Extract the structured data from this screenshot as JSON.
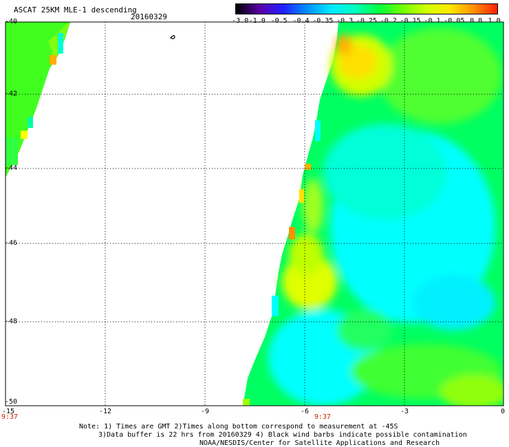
{
  "header": {
    "title": "ASCAT 25KM MLE-1 descending",
    "date": "20160329"
  },
  "colorbar": {
    "labels": [
      "-3.0",
      "-1.0",
      "-0.5",
      "-0.4",
      "-0.35",
      "-0.3",
      "-0.25",
      "-0.2",
      "-0.15",
      "-0.1",
      "-0.05",
      "0.0",
      "1.0"
    ],
    "colors": [
      "#000000",
      "#5b00a8",
      "#2020ff",
      "#0090ff",
      "#00e8ff",
      "#00ffc0",
      "#00ff40",
      "#70ff00",
      "#d0ff00",
      "#ffe800",
      "#ff9000",
      "#ff2000"
    ]
  },
  "map": {
    "lon_range": [
      -15,
      0
    ],
    "lat_range": [
      -50,
      -40
    ],
    "x_ticks": [
      "-15",
      "-12",
      "-9",
      "-6",
      "-3",
      "0"
    ],
    "y_ticks": [
      "-40",
      "-42",
      "-44",
      "-46",
      "-48",
      "-50"
    ],
    "time_labels": [
      "9:37",
      "9:37"
    ],
    "colors": {
      "cyan": "#00ffff",
      "aqua_green": "#00ffa0",
      "green": "#00ff40",
      "yellow_green": "#a0ff00",
      "yellow": "#ffff00",
      "orange": "#ffb000"
    }
  },
  "notes": {
    "line1": "Note: 1) Times are GMT 2)Times along bottom correspond to measurement at -45S",
    "line2": "3)Data buffer is 22 hrs from 20160329 4) Black wind barbs indicate possible contamination",
    "line3": "NOAA/NESDIS/Center for Satellite Applications and Research"
  }
}
